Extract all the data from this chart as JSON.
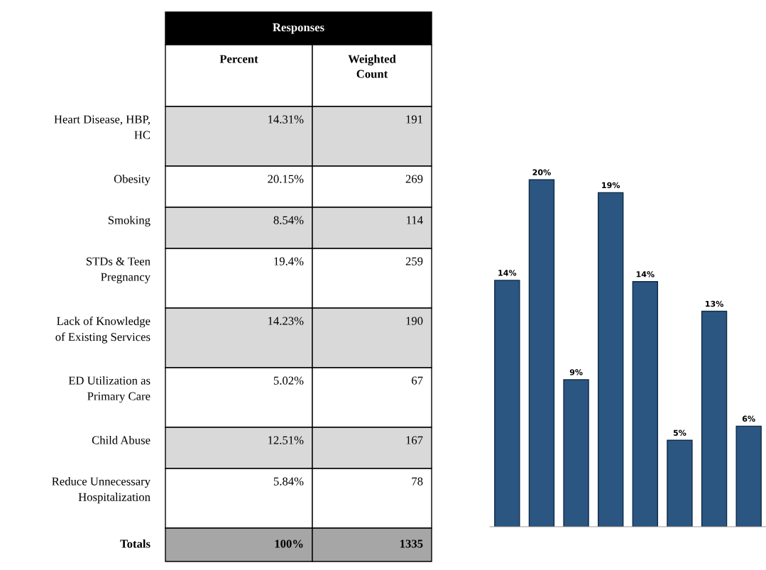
{
  "chart_data": [
    {
      "type": "other",
      "title": "Responses",
      "colors": [
        "#d9d9d9",
        "#ffffff",
        "#d9d9d9",
        "#ffffff",
        "#d9d9d9",
        "#ffffff",
        "#d9d9d9",
        "#ffffff",
        "#a6a6a6"
      ],
      "annotations": [
        "Percent",
        "Weighted\nCount",
        "Heart Disease, HBP,\nHC",
        "14.31%",
        "191",
        "Obesity",
        "20.15%",
        "269",
        "Smoking",
        "8.54%",
        "114",
        "STDs & Teen\nPregnancy",
        "19.4%",
        "259",
        "Lack of Knowledge\nof Existing Services",
        "14.23%",
        "190",
        "ED Utilization as\nPrimary Care",
        "5.02%",
        "67",
        "Child Abuse",
        "12.51%",
        "167",
        "Reduce Unnecessary\nHospitalization",
        "5.84%",
        "78",
        "Totals",
        "100%",
        "1335"
      ]
    },
    {
      "type": "bar",
      "categories": [
        null,
        null,
        null,
        null,
        null,
        null,
        null,
        null
      ],
      "values": [
        14.31,
        20.15,
        8.54,
        19.4,
        14.23,
        5.02,
        12.51,
        5.84
      ],
      "value_labels": [
        "14%",
        "20%",
        "9%",
        "19%",
        "14%",
        "5%",
        "13%",
        "6%"
      ],
      "color": "#2b5681"
    }
  ]
}
